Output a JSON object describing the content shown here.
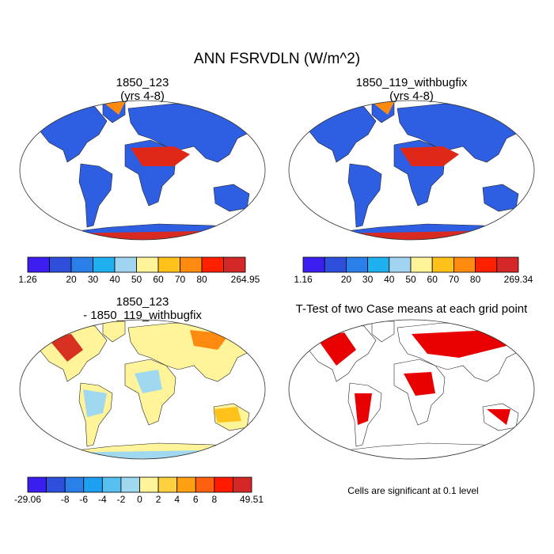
{
  "title": "ANN FSRVDLN (W/m^2)",
  "panels": [
    {
      "title": "1850_123",
      "subtitle": "(yrs 4-8)",
      "colorbar": {
        "colors": [
          "#3c1ff0",
          "#2e4fdc",
          "#2a7fe8",
          "#1fb0f0",
          "#a0d4f0",
          "#fff49a",
          "#ffc21a",
          "#ff8a10",
          "#ff2000",
          "#d42828"
        ],
        "labels": [
          "1.26",
          "20",
          "30",
          "40",
          "50",
          "60",
          "70",
          "80",
          "264.95"
        ]
      }
    },
    {
      "title": "1850_119_withbugfix",
      "subtitle": "(yrs 4-8)",
      "colorbar": {
        "colors": [
          "#3c1ff0",
          "#2e4fdc",
          "#2a7fe8",
          "#1fb0f0",
          "#a0d4f0",
          "#fff49a",
          "#ffc21a",
          "#ff8a10",
          "#ff2000",
          "#d42828"
        ],
        "labels": [
          "1.16",
          "20",
          "30",
          "40",
          "50",
          "60",
          "70",
          "80",
          "269.34"
        ]
      }
    },
    {
      "title": "1850_123",
      "subtitle": "- 1850_119_withbugfix",
      "colorbar": {
        "colors": [
          "#3a1ef0",
          "#2e4fdc",
          "#2a7fe8",
          "#1ea0f0",
          "#58c0f0",
          "#a0d8f0",
          "#fff49a",
          "#ffd040",
          "#ffa010",
          "#ff6010",
          "#ff1a00",
          "#d42828"
        ],
        "labels": [
          "-29.06",
          "-8",
          "-6",
          "-4",
          "-2",
          "0",
          "2",
          "4",
          "6",
          "8",
          "49.51"
        ]
      }
    },
    {
      "title": "T-Test of two Case means at each grid point"
    }
  ],
  "note": "Cells are significant at 0.1 level"
}
